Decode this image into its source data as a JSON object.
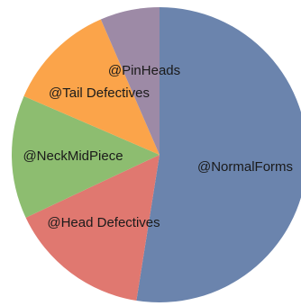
{
  "chart_data": {
    "type": "pie",
    "title": "",
    "start_angle_deg": 0,
    "direction": "clockwise",
    "legend": "none",
    "slices": [
      {
        "label": "@NormalForms",
        "value": 52.5,
        "color": "#6b84ad"
      },
      {
        "label": "@Head Defectives",
        "value": 15.5,
        "color": "#e07870"
      },
      {
        "label": "@NeckMidPiece",
        "value": 13.5,
        "color": "#8dbd70"
      },
      {
        "label": "@Tail Defectives",
        "value": 12.0,
        "color": "#fba44a"
      },
      {
        "label": "@PinHeads",
        "value": 6.5,
        "color": "#9d8aa6"
      }
    ]
  }
}
